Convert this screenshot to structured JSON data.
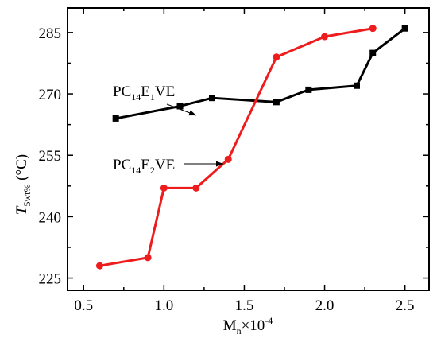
{
  "chart_data": {
    "type": "line",
    "xlabel": {
      "main": "M",
      "sub": "n",
      "suffix": "×10",
      "sup": "-4"
    },
    "ylabel": {
      "main": "T",
      "sub": "5wt%",
      "suffix": " (°C)"
    },
    "xlim": [
      0.4,
      2.65
    ],
    "ylim": [
      222,
      291
    ],
    "xticks": [
      0.5,
      1.0,
      1.5,
      2.0,
      2.5
    ],
    "xtick_labels": [
      "0.5",
      "1.0",
      "1.5",
      "2.0",
      "2.5"
    ],
    "yticks": [
      225,
      240,
      255,
      270,
      285
    ],
    "ytick_labels": [
      "225",
      "240",
      "255",
      "270",
      "285"
    ],
    "grid": false,
    "series": [
      {
        "name": "PC14E1VE",
        "color": "#000000",
        "marker": "square",
        "x": [
          0.7,
          1.1,
          1.3,
          1.7,
          1.9,
          2.2,
          2.3,
          2.5
        ],
        "y": [
          264,
          267,
          269,
          268,
          271,
          272,
          280,
          286
        ]
      },
      {
        "name": "PC14E2VE",
        "color": "#ee1c1c",
        "marker": "circle",
        "x": [
          0.6,
          0.9,
          1.0,
          1.2,
          1.4,
          1.7,
          2.0,
          2.3
        ],
        "y": [
          228,
          230,
          247,
          247,
          254,
          279,
          284,
          286
        ]
      }
    ],
    "annotations": [
      {
        "label_main": "PC",
        "label_sub1": "14",
        "label_mid": "E",
        "label_sub2": "1",
        "label_end": "VE",
        "points_to": [
          1.25,
          269
        ]
      },
      {
        "label_main": "PC",
        "label_sub1": "14",
        "label_mid": "E",
        "label_sub2": "2",
        "label_end": "VE",
        "points_to": [
          1.38,
          254
        ]
      }
    ]
  }
}
